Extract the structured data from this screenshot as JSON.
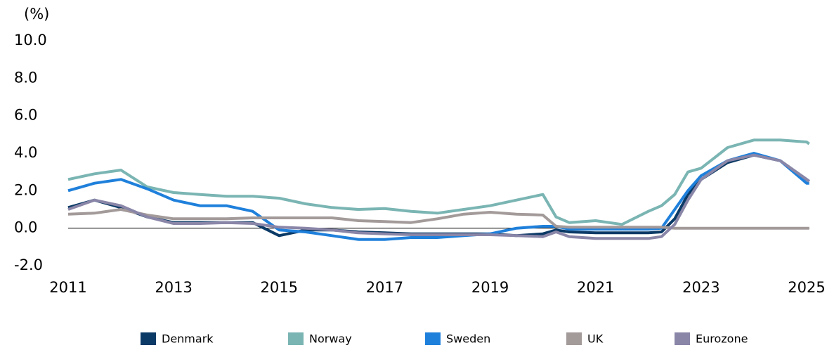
{
  "chart_data": {
    "type": "line",
    "y_label": "(%)",
    "x": [
      2011,
      2011.5,
      2012,
      2012.5,
      2013,
      2013.5,
      2014,
      2014.5,
      2015,
      2015.5,
      2016,
      2016.5,
      2017,
      2017.5,
      2018,
      2018.5,
      2019,
      2019.5,
      2020,
      2020.25,
      2020.5,
      2021,
      2021.5,
      2022,
      2022.25,
      2022.5,
      2022.75,
      2023,
      2023.5,
      2024,
      2024.5,
      2025,
      2025.05
    ],
    "series": [
      {
        "name": "Denmark",
        "color": "#0b3a66",
        "values": [
          1.1,
          1.5,
          1.1,
          0.6,
          0.3,
          0.3,
          0.3,
          0.3,
          -0.4,
          -0.1,
          -0.1,
          -0.2,
          -0.25,
          -0.3,
          -0.3,
          -0.3,
          -0.3,
          -0.4,
          -0.3,
          -0.1,
          -0.2,
          -0.25,
          -0.25,
          -0.25,
          -0.2,
          0.5,
          1.8,
          2.6,
          3.5,
          3.9,
          3.6,
          2.6,
          2.5
        ]
      },
      {
        "name": "Norway",
        "color": "#7ab5b3",
        "values": [
          2.6,
          2.9,
          3.1,
          2.2,
          1.9,
          1.8,
          1.7,
          1.7,
          1.6,
          1.3,
          1.1,
          1.0,
          1.05,
          0.9,
          0.8,
          1.0,
          1.2,
          1.5,
          1.8,
          0.6,
          0.3,
          0.4,
          0.2,
          0.9,
          1.2,
          1.8,
          3.0,
          3.2,
          4.3,
          4.7,
          4.7,
          4.6,
          4.5
        ]
      },
      {
        "name": "Sweden",
        "color": "#1f80db",
        "values": [
          2.0,
          2.4,
          2.6,
          2.1,
          1.5,
          1.2,
          1.2,
          0.9,
          -0.1,
          -0.2,
          -0.4,
          -0.6,
          -0.6,
          -0.5,
          -0.5,
          -0.4,
          -0.3,
          0.0,
          0.1,
          0.1,
          -0.05,
          -0.05,
          -0.05,
          -0.05,
          0.0,
          1.0,
          2.0,
          2.8,
          3.6,
          4.0,
          3.6,
          2.4,
          2.4
        ]
      },
      {
        "name": "UK",
        "color": "#a39a9a",
        "values": [
          0.75,
          0.8,
          1.0,
          0.7,
          0.5,
          0.5,
          0.5,
          0.55,
          0.55,
          0.55,
          0.55,
          0.4,
          0.35,
          0.3,
          0.5,
          0.75,
          0.85,
          0.75,
          0.7,
          0.1,
          0.05,
          0.05,
          0.05,
          0.05,
          0.05,
          0.0,
          0.0,
          0.0,
          0.0,
          0.0,
          0.0,
          0.0,
          0.0
        ]
      },
      {
        "name": "Eurozone",
        "color": "#8a86a8",
        "values": [
          1.0,
          1.5,
          1.2,
          0.6,
          0.25,
          0.25,
          0.3,
          0.25,
          0.05,
          0.0,
          -0.1,
          -0.25,
          -0.3,
          -0.35,
          -0.35,
          -0.35,
          -0.35,
          -0.4,
          -0.45,
          -0.2,
          -0.45,
          -0.55,
          -0.55,
          -0.55,
          -0.45,
          0.2,
          1.5,
          2.6,
          3.6,
          3.9,
          3.6,
          2.6,
          2.5
        ]
      }
    ],
    "xlim": [
      2011,
      2025.1
    ],
    "xticks": [
      2011,
      2013,
      2015,
      2017,
      2019,
      2021,
      2023,
      2025
    ],
    "ylim": [
      -2,
      10
    ],
    "yticks": [
      {
        "value": -2,
        "label": "-2.0"
      },
      {
        "value": 0,
        "label": "0.0"
      },
      {
        "value": 2,
        "label": "2.0"
      },
      {
        "value": 4,
        "label": "4.0"
      },
      {
        "value": 6,
        "label": "6.0"
      },
      {
        "value": 8,
        "label": "8.0"
      },
      {
        "value": 10,
        "label": "10.0"
      }
    ],
    "legend": "bottom"
  }
}
